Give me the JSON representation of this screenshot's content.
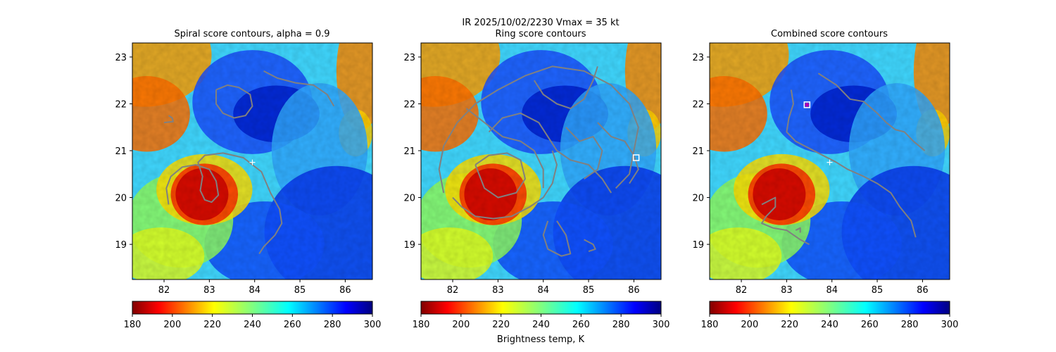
{
  "figure": {
    "suptitle_line1": "IR  2025/10/02/2230    Vmax = 35 kt",
    "colorbar_label": "Brightness temp, K",
    "colormap": "jet_r",
    "contour_color": "#808080"
  },
  "chart_data": [
    {
      "type": "heatmap",
      "title": "Spiral score contours, alpha =  0.9",
      "xlim": [
        81.3,
        86.6
      ],
      "ylim": [
        18.25,
        23.3
      ],
      "xticks": [
        "82",
        "83",
        "84",
        "85",
        "86"
      ],
      "yticks": [
        "19",
        "20",
        "21",
        "22",
        "23"
      ],
      "markers": [
        {
          "type": "plus",
          "x": 83.95,
          "y": 20.75
        }
      ],
      "contours": [
        [
          [
            82.1,
            19.85
          ],
          [
            82.05,
            20.2
          ],
          [
            82.15,
            20.45
          ],
          [
            82.4,
            20.65
          ],
          [
            82.7,
            20.7
          ],
          [
            83.0,
            20.6
          ],
          [
            83.15,
            20.35
          ],
          [
            83.2,
            20.05
          ],
          [
            83.05,
            19.9
          ],
          [
            82.9,
            19.95
          ],
          [
            82.8,
            20.15
          ],
          [
            82.85,
            20.45
          ],
          [
            82.75,
            20.75
          ],
          [
            82.9,
            20.9
          ],
          [
            83.3,
            20.95
          ],
          [
            83.75,
            20.85
          ],
          [
            84.15,
            20.55
          ],
          [
            84.35,
            20.1
          ],
          [
            84.55,
            19.75
          ],
          [
            84.6,
            19.45
          ],
          [
            84.45,
            19.2
          ],
          [
            84.2,
            18.95
          ],
          [
            84.1,
            18.8
          ]
        ],
        [
          [
            82.0,
            21.6
          ],
          [
            82.2,
            21.62
          ],
          [
            82.18,
            21.7
          ],
          [
            82.1,
            21.75
          ]
        ],
        [
          [
            83.15,
            22.3
          ],
          [
            83.4,
            22.4
          ],
          [
            83.65,
            22.35
          ],
          [
            83.9,
            22.2
          ],
          [
            83.95,
            21.95
          ],
          [
            83.8,
            21.75
          ],
          [
            83.55,
            21.7
          ],
          [
            83.3,
            21.8
          ],
          [
            83.15,
            22.0
          ],
          [
            83.15,
            22.3
          ]
        ],
        [
          [
            84.2,
            22.7
          ],
          [
            84.5,
            22.55
          ],
          [
            84.9,
            22.45
          ],
          [
            85.3,
            22.4
          ],
          [
            85.6,
            22.2
          ],
          [
            85.75,
            21.95
          ]
        ]
      ]
    },
    {
      "type": "heatmap",
      "title": "Ring score contours",
      "xlim": [
        81.3,
        86.6
      ],
      "ylim": [
        18.25,
        23.3
      ],
      "xticks": [
        "82",
        "83",
        "84",
        "85",
        "86"
      ],
      "yticks": [
        "19",
        "20",
        "21",
        "22",
        "23"
      ],
      "markers": [
        {
          "type": "square",
          "x": 86.05,
          "y": 20.85
        }
      ],
      "contours": [
        [
          [
            81.8,
            20.1
          ],
          [
            81.7,
            20.6
          ],
          [
            81.8,
            21.1
          ],
          [
            82.1,
            21.6
          ],
          [
            82.5,
            22.0
          ],
          [
            83.0,
            22.3
          ],
          [
            83.6,
            22.6
          ],
          [
            84.2,
            22.8
          ],
          [
            84.9,
            22.7
          ],
          [
            85.5,
            22.4
          ],
          [
            85.9,
            22.0
          ],
          [
            86.1,
            21.5
          ],
          [
            86.0,
            21.0
          ],
          [
            85.9,
            20.5
          ],
          [
            85.6,
            20.2
          ]
        ],
        [
          [
            82.0,
            20.0
          ],
          [
            82.2,
            19.8
          ],
          [
            82.5,
            19.6
          ],
          [
            82.9,
            19.55
          ],
          [
            83.3,
            19.6
          ],
          [
            83.7,
            19.8
          ],
          [
            84.0,
            20.0
          ],
          [
            84.2,
            20.3
          ],
          [
            84.3,
            20.7
          ],
          [
            84.2,
            21.0
          ]
        ],
        [
          [
            82.5,
            20.7
          ],
          [
            82.8,
            20.9
          ],
          [
            83.2,
            20.95
          ],
          [
            83.5,
            20.8
          ],
          [
            83.6,
            20.4
          ],
          [
            83.4,
            20.1
          ],
          [
            83.0,
            20.0
          ],
          [
            82.7,
            20.2
          ],
          [
            82.5,
            20.7
          ]
        ],
        [
          [
            84.1,
            19.5
          ],
          [
            84.0,
            19.2
          ],
          [
            84.1,
            18.9
          ],
          [
            84.4,
            18.75
          ],
          [
            84.6,
            18.8
          ],
          [
            84.5,
            19.2
          ],
          [
            84.3,
            19.5
          ]
        ],
        [
          [
            84.9,
            19.1
          ],
          [
            85.1,
            19.0
          ],
          [
            85.15,
            18.9
          ],
          [
            85.0,
            18.85
          ]
        ],
        [
          [
            82.8,
            21.4
          ],
          [
            83.1,
            21.7
          ],
          [
            83.5,
            21.8
          ],
          [
            83.9,
            21.6
          ],
          [
            84.1,
            21.3
          ],
          [
            84.3,
            21.0
          ],
          [
            84.6,
            20.8
          ],
          [
            85.0,
            20.7
          ],
          [
            85.3,
            20.4
          ],
          [
            85.5,
            20.1
          ]
        ],
        [
          [
            83.8,
            22.5
          ],
          [
            84.0,
            22.2
          ],
          [
            84.3,
            22.0
          ],
          [
            84.6,
            21.9
          ],
          [
            84.9,
            22.1
          ],
          [
            85.1,
            22.5
          ],
          [
            85.2,
            22.8
          ]
        ],
        [
          [
            82.3,
            21.9
          ],
          [
            82.7,
            21.6
          ],
          [
            83.1,
            21.3
          ],
          [
            83.5,
            21.2
          ],
          [
            83.8,
            21.0
          ],
          [
            84.0,
            20.6
          ],
          [
            84.0,
            20.2
          ]
        ],
        [
          [
            85.2,
            21.6
          ],
          [
            85.5,
            21.3
          ],
          [
            85.8,
            21.2
          ],
          [
            86.0,
            20.9
          ],
          [
            86.1,
            20.6
          ],
          [
            85.9,
            20.3
          ]
        ],
        [
          [
            84.5,
            21.5
          ],
          [
            84.8,
            21.2
          ],
          [
            85.1,
            21.3
          ],
          [
            85.3,
            21.0
          ],
          [
            85.2,
            20.6
          ],
          [
            84.9,
            20.4
          ]
        ]
      ]
    },
    {
      "type": "heatmap",
      "title": "Combined score contours",
      "xlim": [
        81.3,
        86.6
      ],
      "ylim": [
        18.25,
        23.3
      ],
      "xticks": [
        "82",
        "83",
        "84",
        "85",
        "86"
      ],
      "yticks": [
        "19",
        "20",
        "21",
        "22",
        "23"
      ],
      "markers": [
        {
          "type": "plus",
          "x": 83.95,
          "y": 20.75
        },
        {
          "type": "square",
          "x": 83.45,
          "y": 21.98
        },
        {
          "type": "circle",
          "x": 83.45,
          "y": 21.98
        }
      ],
      "contours": [
        [
          [
            82.45,
            19.85
          ],
          [
            82.75,
            20.0
          ],
          [
            82.75,
            19.8
          ],
          [
            82.55,
            19.6
          ],
          [
            82.45,
            19.45
          ],
          [
            82.7,
            19.35
          ],
          [
            83.0,
            19.3
          ],
          [
            83.3,
            19.1
          ],
          [
            83.5,
            19.0
          ]
        ],
        [
          [
            83.2,
            19.3
          ],
          [
            83.3,
            19.35
          ],
          [
            83.3,
            19.25
          ]
        ],
        [
          [
            83.1,
            22.3
          ],
          [
            83.15,
            22.0
          ],
          [
            83.05,
            21.7
          ],
          [
            83.0,
            21.4
          ],
          [
            83.2,
            21.2
          ],
          [
            83.5,
            21.05
          ],
          [
            83.8,
            20.9
          ],
          [
            84.1,
            20.75
          ],
          [
            84.35,
            20.6
          ],
          [
            84.7,
            20.45
          ],
          [
            85.0,
            20.3
          ],
          [
            85.3,
            20.1
          ],
          [
            85.5,
            19.8
          ],
          [
            85.75,
            19.5
          ],
          [
            85.85,
            19.15
          ]
        ],
        [
          [
            83.7,
            22.65
          ],
          [
            84.1,
            22.4
          ],
          [
            84.4,
            22.1
          ],
          [
            84.7,
            22.05
          ],
          [
            85.0,
            21.8
          ],
          [
            85.2,
            21.6
          ],
          [
            85.4,
            21.45
          ],
          [
            85.6,
            21.4
          ],
          [
            85.8,
            21.2
          ],
          [
            86.05,
            21.0
          ]
        ]
      ]
    }
  ]
}
